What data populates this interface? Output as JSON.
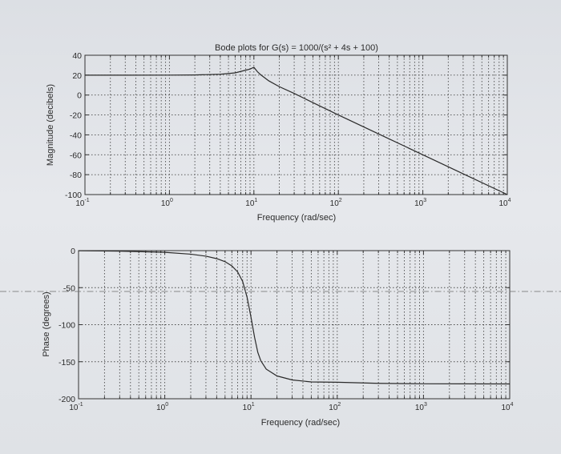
{
  "chart_data": [
    {
      "type": "line",
      "title": "Bode plots for G(s) = 1000/(s² + 4s + 100)",
      "xlabel": "Frequency (rad/sec)",
      "ylabel": "Magnitude (decibels)",
      "xscale": "log",
      "xlim": [
        0.1,
        10000
      ],
      "ylim": [
        -100,
        40
      ],
      "grid": true,
      "x_ticks": [
        0.1,
        1,
        10,
        100,
        1000,
        10000
      ],
      "x_tick_labels": [
        {
          "base": "10",
          "exp": "-1"
        },
        {
          "base": "10",
          "exp": "0"
        },
        {
          "base": "10",
          "exp": "1"
        },
        {
          "base": "10",
          "exp": "2"
        },
        {
          "base": "10",
          "exp": "3"
        },
        {
          "base": "10",
          "exp": "4"
        }
      ],
      "y_ticks": [
        40,
        20,
        0,
        -20,
        -40,
        -60,
        -80,
        -100
      ],
      "y_tick_labels": [
        "40",
        "20",
        "0",
        "-20",
        "-40",
        "-60",
        "-80",
        "-100"
      ],
      "series": [
        {
          "x": [
            0.1,
            0.3,
            1,
            2,
            4,
            6,
            8,
            9,
            10,
            11,
            12,
            15,
            20,
            30,
            50,
            100,
            300,
            1000,
            3000,
            10000
          ],
          "y": [
            20,
            20,
            20.04,
            20.2,
            20.9,
            22.3,
            25,
            26.1,
            27.96,
            23.5,
            20.5,
            14.3,
            8.4,
            1.6,
            -7.6,
            -20,
            -39.1,
            -60,
            -79.1,
            -100
          ]
        }
      ]
    },
    {
      "type": "line",
      "xlabel": "Frequency (rad/sec)",
      "ylabel": "Phase (degrees)",
      "xscale": "log",
      "xlim": [
        0.1,
        10000
      ],
      "ylim": [
        -200,
        0
      ],
      "grid": true,
      "x_ticks": [
        0.1,
        1,
        10,
        100,
        1000,
        10000
      ],
      "x_tick_labels": [
        {
          "base": "10",
          "exp": "-1"
        },
        {
          "base": "10",
          "exp": "0"
        },
        {
          "base": "10",
          "exp": "1"
        },
        {
          "base": "10",
          "exp": "2"
        },
        {
          "base": "10",
          "exp": "3"
        },
        {
          "base": "10",
          "exp": "4"
        }
      ],
      "y_ticks": [
        0,
        -50,
        -100,
        -150,
        -200
      ],
      "y_tick_labels": [
        "0",
        "-50",
        "-100",
        "-150",
        "-200"
      ],
      "series": [
        {
          "x": [
            0.1,
            0.3,
            1,
            2,
            3,
            4,
            5,
            6,
            7,
            8,
            9,
            10,
            11,
            12,
            13,
            15,
            20,
            30,
            50,
            100,
            300,
            1000,
            3000,
            10000
          ],
          "y": [
            -0.2,
            -0.7,
            -2.3,
            -4.8,
            -7.5,
            -10.8,
            -14.9,
            -20.6,
            -28.8,
            -41.6,
            -62.9,
            -90,
            -117,
            -137.5,
            -148.7,
            -160,
            -169.2,
            -174.6,
            -177.3,
            -177.7,
            -179.2,
            -179.8,
            -179.9,
            -180
          ]
        }
      ]
    }
  ]
}
